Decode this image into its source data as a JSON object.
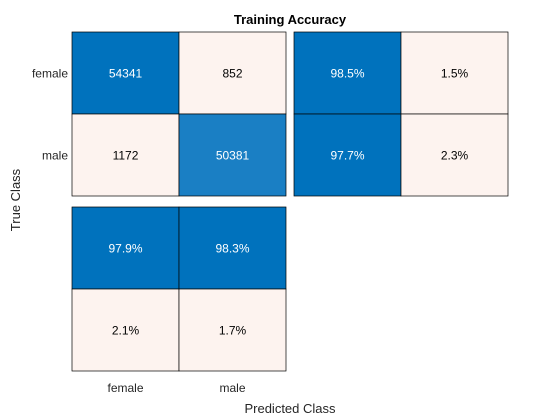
{
  "chart_data": {
    "type": "heatmap",
    "title": "Training Accuracy",
    "xlabel": "Predicted Class",
    "ylabel": "True Class",
    "classes": [
      "female",
      "male"
    ],
    "confusion_matrix": {
      "rows": [
        "female",
        "male"
      ],
      "cols": [
        "female",
        "male"
      ],
      "values": [
        [
          54341,
          852
        ],
        [
          1172,
          50381
        ]
      ]
    },
    "row_summary": {
      "values": [
        [
          "98.5%",
          "1.5%"
        ],
        [
          "97.7%",
          "2.3%"
        ]
      ]
    },
    "column_summary": {
      "values": [
        [
          "97.9%",
          "98.3%"
        ],
        [
          "2.1%",
          "1.7%"
        ]
      ]
    },
    "colors": {
      "dark": "#0072bd",
      "medium": "#1a7fc4",
      "light": "#fdf3ef",
      "text_on_dark": "#ffffff",
      "text_on_light": "#000000"
    }
  }
}
